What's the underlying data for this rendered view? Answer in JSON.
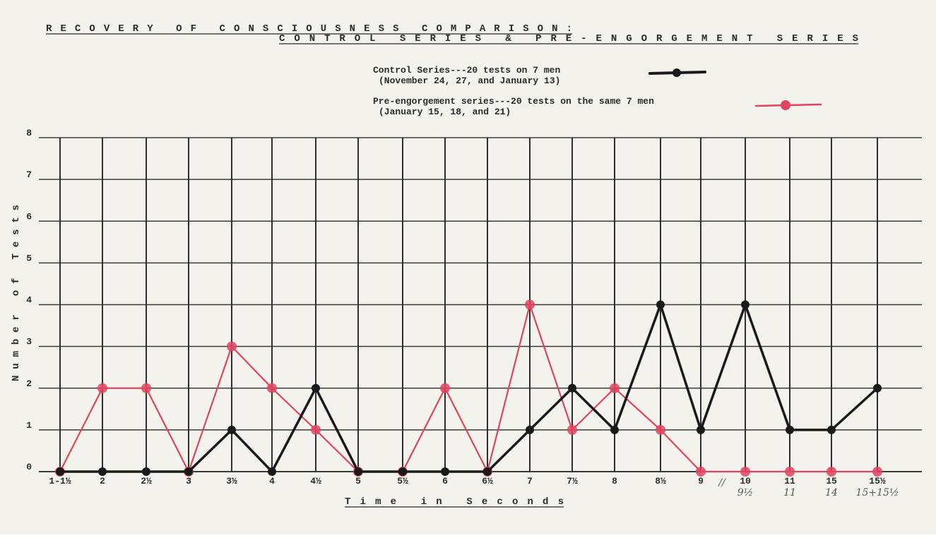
{
  "chart_data": {
    "type": "line",
    "title_line1": "RECOVERY OF CONSCIOUSNESS COMPARISON:",
    "title_line2": "CONTROL SERIES & PRE-ENGORGEMENT SERIES",
    "xlabel": "Time in Seconds",
    "ylabel": "Number of Tests",
    "categories": [
      "1-1½",
      "2",
      "2½",
      "3",
      "3½",
      "4",
      "4½",
      "5",
      "5½",
      "6",
      "6½",
      "7",
      "7½",
      "8",
      "8½",
      "9",
      "10",
      "11",
      "15",
      "15½"
    ],
    "handwritten_labels": [
      {
        "index": 15,
        "text": "//"
      },
      {
        "index": 16,
        "text": "9½"
      },
      {
        "index": 17,
        "text": "11"
      },
      {
        "index": 18,
        "text": "14"
      },
      {
        "index": 19,
        "text": "15+15½"
      }
    ],
    "ylim": [
      0,
      8
    ],
    "yticks": [
      0,
      1,
      2,
      3,
      4,
      5,
      6,
      7,
      8
    ],
    "grid": true,
    "legend_placement": "top-center",
    "series": [
      {
        "name": "Control Series",
        "legend_line1": "Control Series---20 tests on 7 men",
        "legend_line2": "(November 24, 27, and January 13)",
        "color": "#1a1a1a",
        "values": [
          0,
          0,
          0,
          0,
          1,
          0,
          2,
          0,
          0,
          0,
          0,
          1,
          2,
          1,
          4,
          1,
          4,
          1,
          1,
          2
        ]
      },
      {
        "name": "Pre-engorgement series",
        "legend_line1": "Pre-engorgement series---20 tests on the same 7 men",
        "legend_line2": "(January 15, 18, and 21)",
        "color": "#e0445e",
        "values": [
          0,
          2,
          2,
          0,
          3,
          2,
          1,
          0,
          0,
          2,
          0,
          4,
          1,
          2,
          1,
          0,
          0,
          0,
          0,
          0
        ]
      }
    ]
  }
}
